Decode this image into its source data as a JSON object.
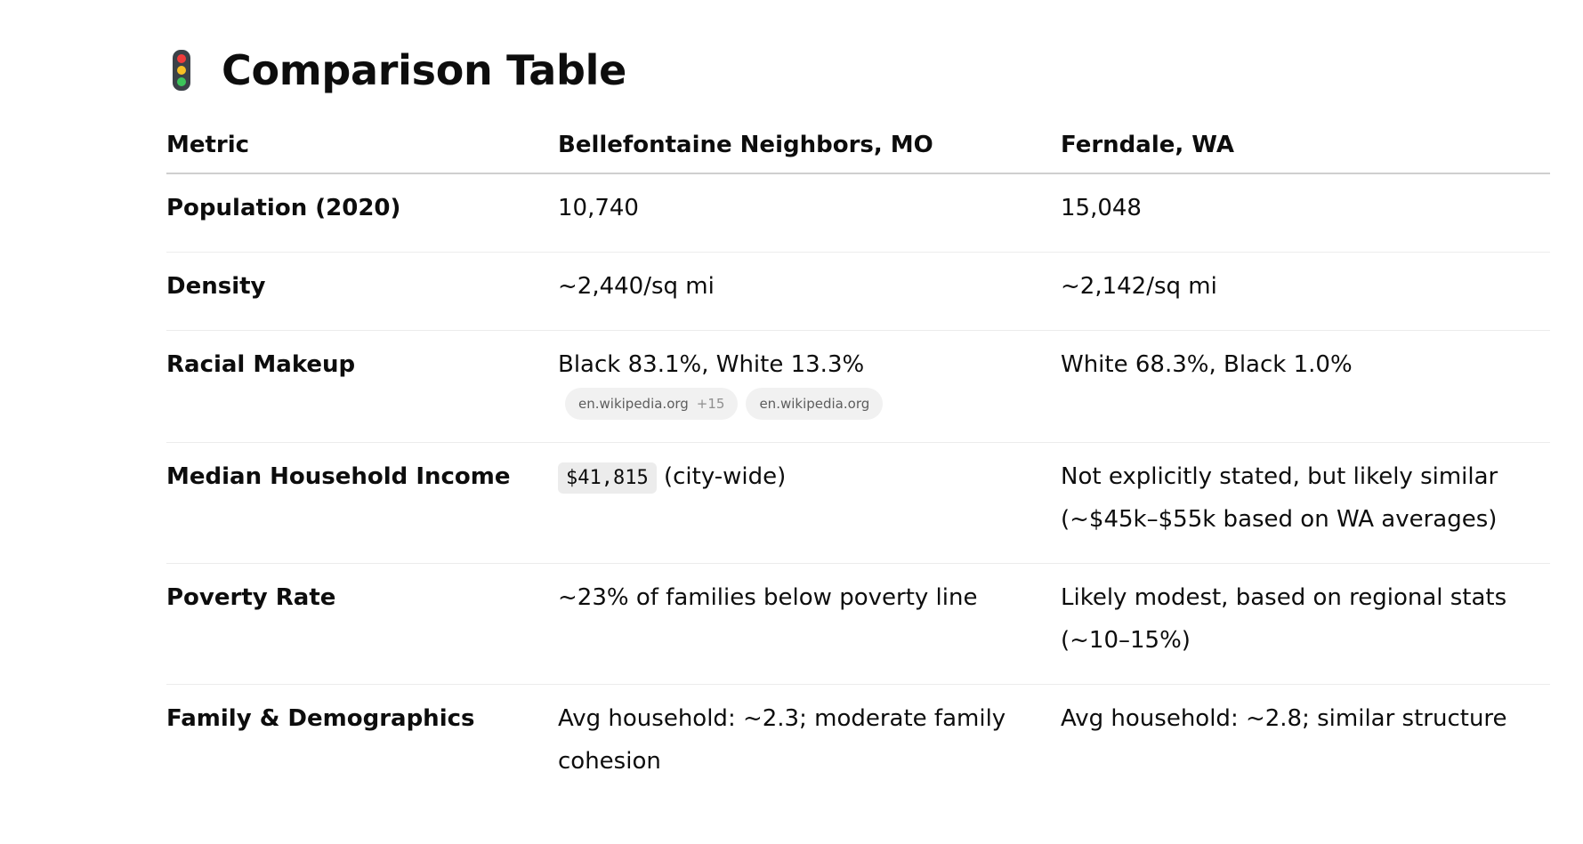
{
  "heading": {
    "icon": "traffic-light-icon",
    "title": "Comparison Table"
  },
  "table": {
    "headers": [
      "Metric",
      "Bellefontaine Neighbors, MO",
      "Ferndale, WA"
    ],
    "rows": [
      {
        "metric": "Population (2020)",
        "a": "10,740",
        "b": "15,048"
      },
      {
        "metric": "Density",
        "a": "~2,440/sq mi",
        "b": "~2,142/sq mi"
      },
      {
        "metric": "Racial Makeup",
        "a": "Black 83.1%, White 13.3%",
        "b": "White 68.3%, Black 1.0%",
        "sources": [
          {
            "label": "en.wikipedia.org",
            "more": "+15"
          },
          {
            "label": "en.wikipedia.org"
          }
        ]
      },
      {
        "metric": "Median Household Income",
        "a_code": "$41,815",
        "a_rest": " (city-wide)",
        "b": "Not explicitly stated, but likely similar (~$45k–$55k based on WA averages)"
      },
      {
        "metric": "Poverty Rate",
        "a": "~23% of families below poverty line",
        "b": "Likely modest, based on regional stats (~10–15%)"
      },
      {
        "metric": "Family & Demographics",
        "a": "Avg household: ~2.3; moderate family cohesion",
        "b": "Avg household: ~2.8; similar structure"
      }
    ]
  }
}
